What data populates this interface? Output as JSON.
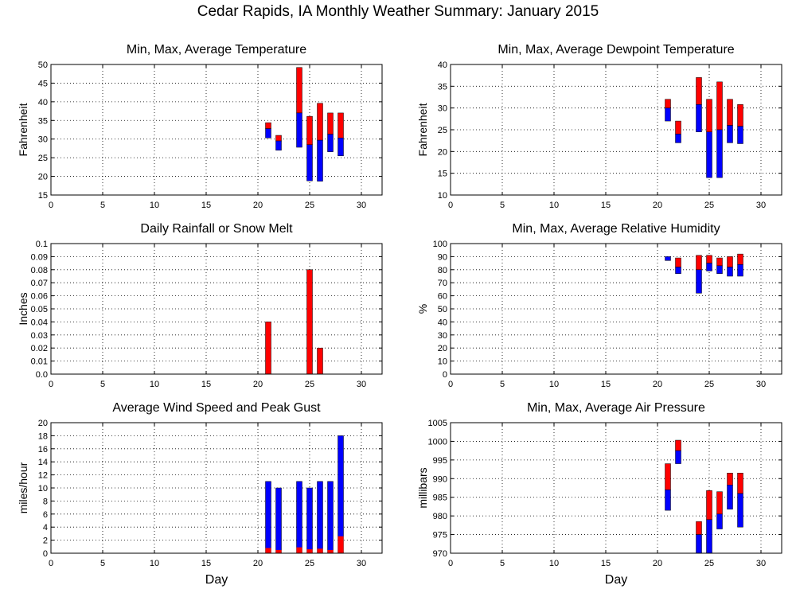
{
  "page": {
    "title": "Cedar Rapids, IA Monthly Weather Summary: January 2015"
  },
  "colors": {
    "upper": "#ff0000",
    "lower": "#0000ff",
    "grid": "#000000",
    "background": "#ffffff"
  },
  "chart_data": [
    {
      "id": "temperature",
      "type": "bar",
      "title": "Min, Max, Average Temperature",
      "xlabel": "",
      "ylabel": "Fahrenheit",
      "xlim": [
        0,
        32
      ],
      "xticks": [
        "0",
        "5",
        "10",
        "15",
        "20",
        "25",
        "30"
      ],
      "ylim": [
        15,
        50
      ],
      "yticks": [
        "15",
        "20",
        "25",
        "30",
        "35",
        "40",
        "45",
        "50"
      ],
      "bar_style": "range",
      "series_keys": [
        "day",
        "min",
        "avg",
        "max"
      ],
      "data": [
        [
          21,
          30.3,
          32.8,
          34.4
        ],
        [
          22,
          27.0,
          29.5,
          31.0
        ],
        [
          24,
          27.8,
          37.0,
          49.2
        ],
        [
          25,
          18.8,
          28.5,
          36.1
        ],
        [
          26,
          18.7,
          29.7,
          39.6
        ],
        [
          27,
          26.6,
          31.3,
          37.0
        ],
        [
          28,
          25.5,
          30.3,
          37.0
        ]
      ]
    },
    {
      "id": "dewpoint",
      "type": "bar",
      "title": "Min, Max, Average Dewpoint Temperature",
      "xlabel": "",
      "ylabel": "Fahrenheit",
      "xlim": [
        0,
        32
      ],
      "xticks": [
        "0",
        "5",
        "10",
        "15",
        "20",
        "25",
        "30"
      ],
      "ylim": [
        10,
        40
      ],
      "yticks": [
        "10",
        "15",
        "20",
        "25",
        "30",
        "35",
        "40"
      ],
      "bar_style": "range",
      "series_keys": [
        "day",
        "min",
        "avg",
        "max"
      ],
      "data": [
        [
          21,
          27.0,
          30.0,
          32.0
        ],
        [
          22,
          22.0,
          24.0,
          27.0
        ],
        [
          24,
          24.5,
          30.8,
          37.0
        ],
        [
          25,
          14.0,
          24.5,
          32.0
        ],
        [
          26,
          14.0,
          25.0,
          36.0
        ],
        [
          27,
          22.0,
          26.0,
          32.0
        ],
        [
          28,
          21.8,
          25.8,
          30.8
        ]
      ]
    },
    {
      "id": "rainfall",
      "type": "bar",
      "title": "Daily Rainfall or Snow Melt",
      "xlabel": "",
      "ylabel": "Inches",
      "xlim": [
        0,
        32
      ],
      "xticks": [
        "0",
        "5",
        "10",
        "15",
        "20",
        "25",
        "30"
      ],
      "ylim": [
        0,
        0.1
      ],
      "yticks": [
        "0.0",
        "0.01",
        "0.02",
        "0.03",
        "0.04",
        "0.05",
        "0.06",
        "0.07",
        "0.08",
        "0.09",
        "0.1"
      ],
      "bar_style": "single",
      "series_keys": [
        "day",
        "inches"
      ],
      "data": [
        [
          21,
          0.04
        ],
        [
          25,
          0.08
        ],
        [
          26,
          0.02
        ]
      ]
    },
    {
      "id": "humidity",
      "type": "bar",
      "title": "Min, Max, Average Relative Humidity",
      "xlabel": "",
      "ylabel": "%",
      "xlim": [
        0,
        32
      ],
      "xticks": [
        "0",
        "5",
        "10",
        "15",
        "20",
        "25",
        "30"
      ],
      "ylim": [
        0,
        100
      ],
      "yticks": [
        "0",
        "10",
        "20",
        "30",
        "40",
        "50",
        "60",
        "70",
        "80",
        "90",
        "100"
      ],
      "bar_style": "range",
      "series_keys": [
        "day",
        "min",
        "avg",
        "max"
      ],
      "data": [
        [
          21,
          87,
          90,
          90
        ],
        [
          22,
          77,
          82,
          89
        ],
        [
          24,
          62,
          80,
          91
        ],
        [
          25,
          79,
          85,
          91
        ],
        [
          26,
          77,
          83,
          89
        ],
        [
          27,
          75,
          82,
          90
        ],
        [
          28,
          75,
          84,
          92
        ]
      ]
    },
    {
      "id": "wind",
      "type": "bar",
      "title": "Average Wind Speed and Peak Gust",
      "xlabel": "Day",
      "ylabel": "miles/hour",
      "xlim": [
        0,
        32
      ],
      "xticks": [
        "0",
        "5",
        "10",
        "15",
        "20",
        "25",
        "30"
      ],
      "ylim": [
        0,
        20
      ],
      "yticks": [
        "0",
        "2",
        "4",
        "6",
        "8",
        "10",
        "12",
        "14",
        "16",
        "18",
        "20"
      ],
      "bar_style": "wind",
      "series_keys": [
        "day",
        "average",
        "peak_gust"
      ],
      "data": [
        [
          21,
          0.8,
          11
        ],
        [
          22,
          0.5,
          10
        ],
        [
          24,
          0.9,
          11
        ],
        [
          25,
          0.6,
          10
        ],
        [
          26,
          0.7,
          11
        ],
        [
          27,
          0.5,
          11
        ],
        [
          28,
          2.6,
          18
        ]
      ]
    },
    {
      "id": "pressure",
      "type": "bar",
      "title": "Min, Max, Average Air Pressure",
      "xlabel": "Day",
      "ylabel": "millibars",
      "xlim": [
        0,
        32
      ],
      "xticks": [
        "0",
        "5",
        "10",
        "15",
        "20",
        "25",
        "30"
      ],
      "ylim": [
        970,
        1005
      ],
      "yticks": [
        "970",
        "975",
        "980",
        "985",
        "990",
        "995",
        "1000",
        "1005"
      ],
      "bar_style": "range",
      "series_keys": [
        "day",
        "min",
        "avg",
        "max"
      ],
      "data": [
        [
          21,
          981.5,
          987.0,
          994.0
        ],
        [
          22,
          994.0,
          997.5,
          1000.3
        ],
        [
          24,
          970.0,
          975.0,
          978.5
        ],
        [
          25,
          970.0,
          979.0,
          986.8
        ],
        [
          26,
          976.5,
          980.5,
          986.5
        ],
        [
          27,
          981.8,
          988.3,
          991.5
        ],
        [
          28,
          977.0,
          986.0,
          991.5
        ]
      ]
    }
  ]
}
